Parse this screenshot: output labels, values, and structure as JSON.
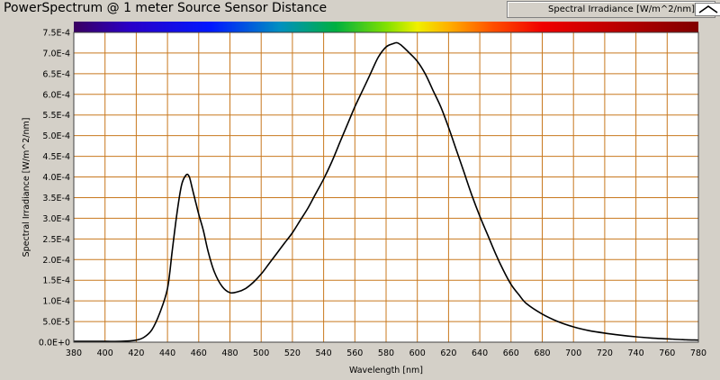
{
  "window": {
    "title": "PowerSpectrum @ 1 meter Source Sensor Distance"
  },
  "legend": {
    "label": "Spectral Irradiance [W/m^2/nm]",
    "icon": "line-sample-icon"
  },
  "colors": {
    "plot_bg": "#ffffff",
    "grid": "#c8781e",
    "curve": "#000000",
    "panel_bg": "#d4d0c8"
  },
  "chart_data": {
    "type": "line",
    "title": "PowerSpectrum @ 1 meter Source Sensor Distance",
    "xlabel": "Wavelength [nm]",
    "ylabel": "Spectral Irradiance [W/m^2/nm]",
    "xlim": [
      380,
      780
    ],
    "ylim": [
      0,
      0.00075
    ],
    "grid": true,
    "legend_position": "top-right",
    "x_ticks": [
      "380",
      "400",
      "420",
      "440",
      "460",
      "480",
      "500",
      "520",
      "540",
      "560",
      "580",
      "600",
      "620",
      "640",
      "660",
      "680",
      "700",
      "720",
      "740",
      "760",
      "780"
    ],
    "y_ticks": [
      "0.0E+0",
      "5.0E-5",
      "1.0E-4",
      "1.5E-4",
      "2.0E-4",
      "2.5E-4",
      "3.0E-4",
      "3.5E-4",
      "4.0E-4",
      "4.5E-4",
      "5.0E-4",
      "5.5E-4",
      "6.0E-4",
      "6.5E-4",
      "7.0E-4",
      "7.5E-4"
    ],
    "series": [
      {
        "name": "Spectral Irradiance [W/m^2/nm]",
        "x": [
          380,
          390,
          400,
          410,
          420,
          425,
          430,
          435,
          440,
          443,
          446,
          449,
          452,
          454,
          456,
          458,
          460,
          463,
          466,
          470,
          475,
          480,
          485,
          490,
          495,
          500,
          505,
          510,
          515,
          520,
          525,
          530,
          535,
          540,
          545,
          550,
          555,
          560,
          565,
          570,
          575,
          580,
          584,
          587,
          590,
          595,
          600,
          605,
          610,
          615,
          620,
          625,
          630,
          635,
          640,
          645,
          650,
          655,
          660,
          665,
          670,
          680,
          690,
          700,
          710,
          720,
          730,
          740,
          750,
          760,
          770,
          780
        ],
        "y": [
          2e-06,
          2e-06,
          2e-06,
          2e-06,
          5e-06,
          1.2e-05,
          3e-05,
          7e-05,
          0.00013,
          0.00022,
          0.00031,
          0.00038,
          0.000405,
          0.0004,
          0.00037,
          0.00034,
          0.00031,
          0.00027,
          0.00022,
          0.00017,
          0.000135,
          0.00012,
          0.000122,
          0.00013,
          0.000145,
          0.000165,
          0.00019,
          0.000215,
          0.00024,
          0.000265,
          0.000295,
          0.000325,
          0.00036,
          0.000395,
          0.000435,
          0.00048,
          0.000525,
          0.00057,
          0.00061,
          0.00065,
          0.00069,
          0.000715,
          0.000722,
          0.000725,
          0.000718,
          0.0007,
          0.00068,
          0.00065,
          0.00061,
          0.00057,
          0.00052,
          0.000465,
          0.00041,
          0.000355,
          0.000305,
          0.00026,
          0.000215,
          0.000175,
          0.00014,
          0.000115,
          9.3e-05,
          6.8e-05,
          5e-05,
          3.7e-05,
          2.8e-05,
          2.2e-05,
          1.7e-05,
          1.3e-05,
          1e-05,
          8e-06,
          6e-06,
          5e-06
        ]
      }
    ]
  }
}
